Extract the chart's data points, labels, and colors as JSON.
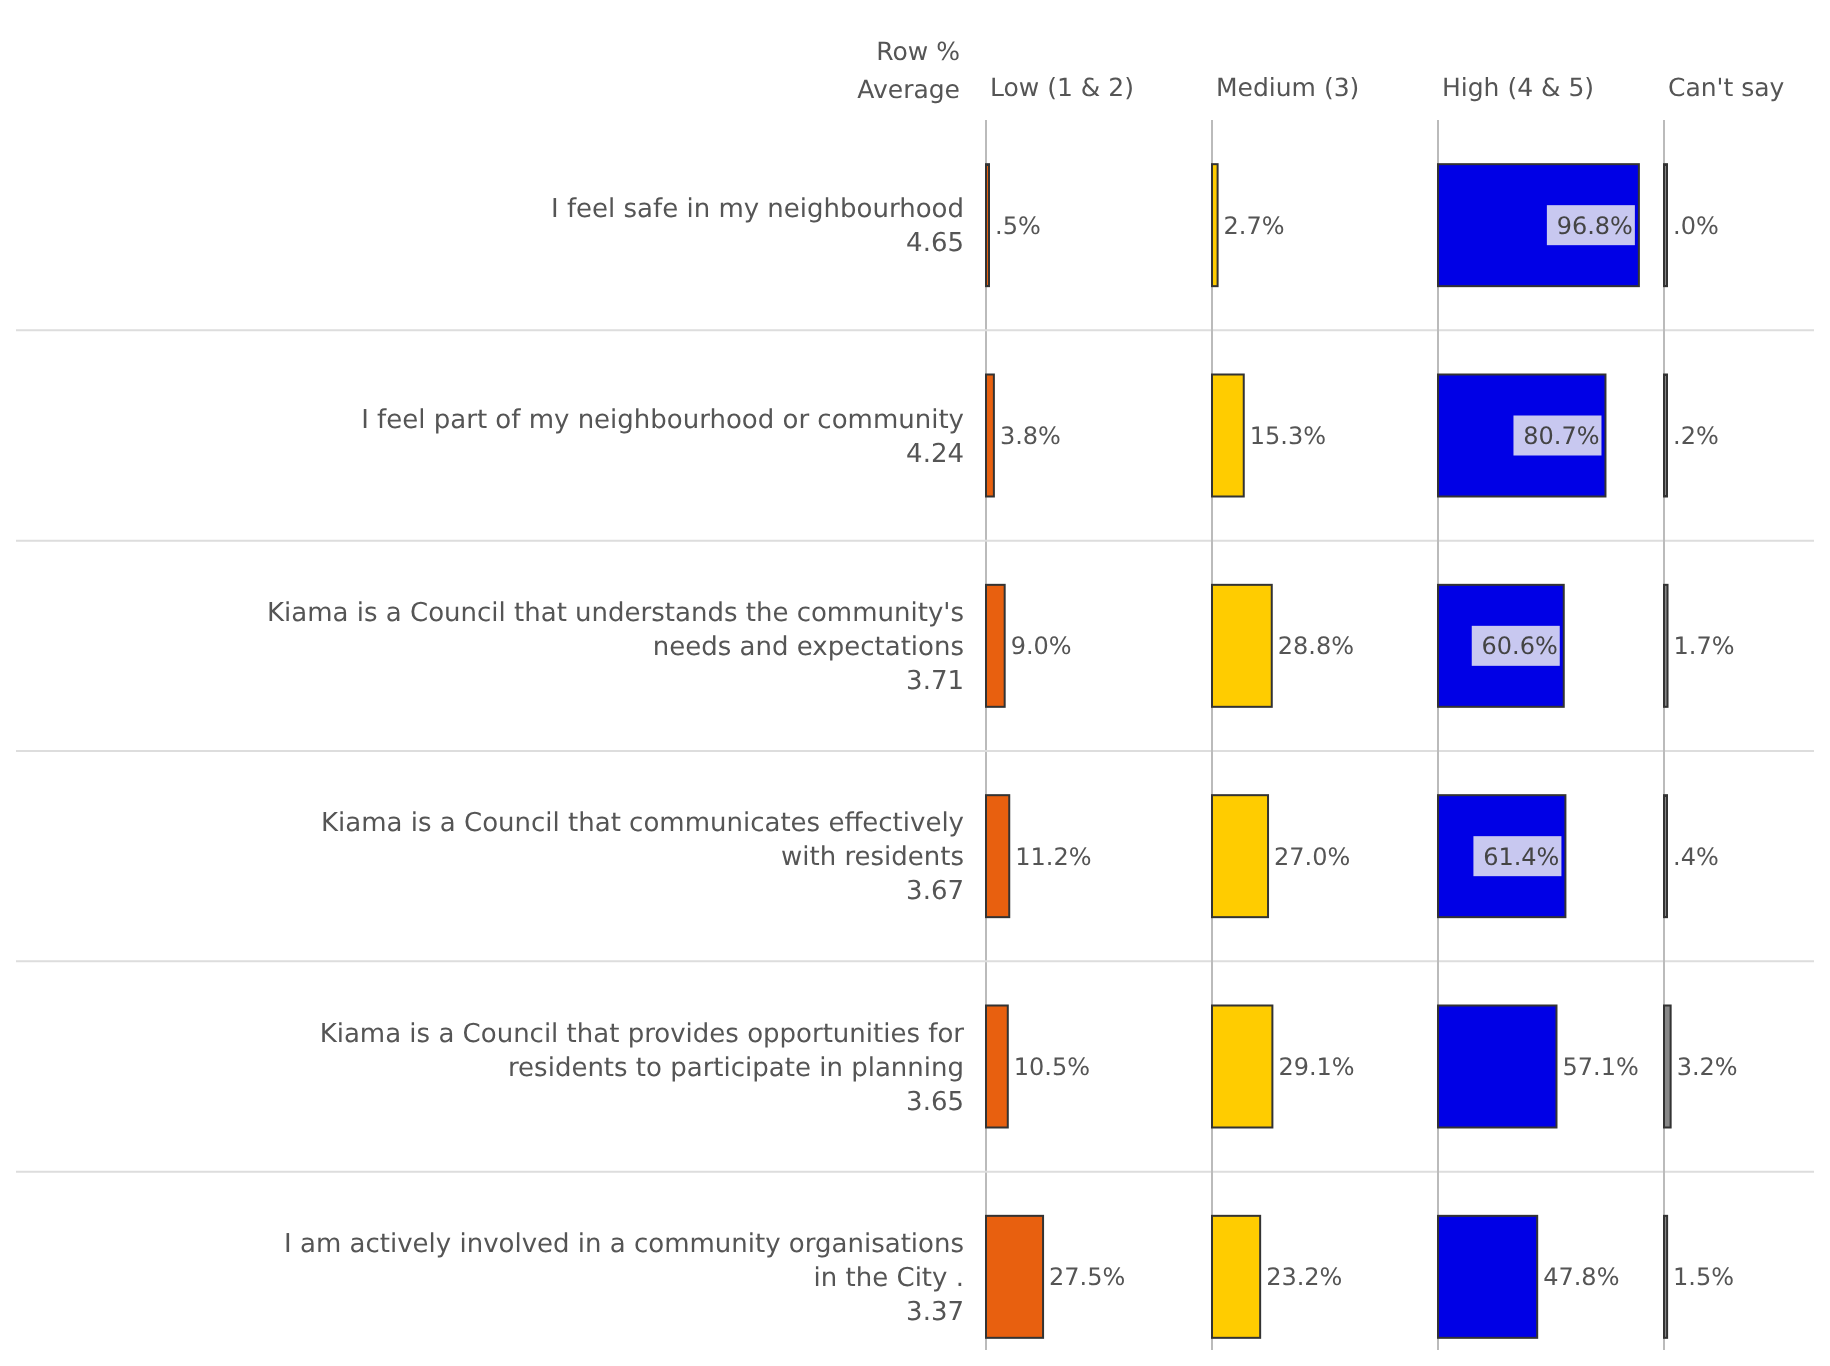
{
  "chart_data": [
    {
      "type": "bar",
      "orientation": "horizontal",
      "title": "Low (1 & 2)",
      "ylabel": "Row %\nAverage",
      "tick_labels": "y",
      "color": "#e8600f",
      "categories": [
        "I feel safe in my neighbourhood\n4.65",
        "I feel part of my neighbourhood or community\n4.24",
        "Kiama is a Council that understands the community's\nneeds and expectations\n3.71",
        "Kiama is a Council that communicates effectively\nwith residents\n3.67",
        "Kiama is a Council that provides opportunities for\nresidents to participate in planning\n3.65",
        "I am actively involved in a community organisations\nin the City .\n3.37"
      ],
      "values": [
        0.5,
        3.8,
        9.0,
        11.2,
        10.5,
        27.5
      ],
      "value_labels": [
        ".5%",
        "3.8%",
        "9.0%",
        "11.2%",
        "10.5%",
        "27.5%"
      ]
    },
    {
      "type": "bar",
      "orientation": "horizontal",
      "title": "Medium (3)",
      "tick_labels": false,
      "color": "#ffcc00",
      "values": [
        2.7,
        15.3,
        28.8,
        27.0,
        29.1,
        23.2
      ],
      "value_labels": [
        "2.7%",
        "15.3%",
        "28.8%",
        "27.0%",
        "29.1%",
        "23.2%"
      ]
    },
    {
      "type": "bar",
      "orientation": "horizontal",
      "title": "High (4 & 5)",
      "tick_labels": false,
      "color": "#0000e6",
      "values": [
        96.8,
        80.7,
        60.6,
        61.4,
        57.1,
        47.8
      ],
      "value_labels": [
        "96.8%",
        "80.7%",
        "60.6%",
        "61.4%",
        "57.1%",
        "47.8%"
      ]
    },
    {
      "type": "bar",
      "orientation": "horizontal",
      "title": "Can't say",
      "tick_labels": false,
      "color": "#888888",
      "values": [
        0.0,
        0.2,
        1.7,
        0.4,
        3.2,
        1.5
      ],
      "value_labels": [
        ".0%",
        ".2%",
        "1.7%",
        ".4%",
        "3.2%",
        "1.5%"
      ]
    }
  ]
}
